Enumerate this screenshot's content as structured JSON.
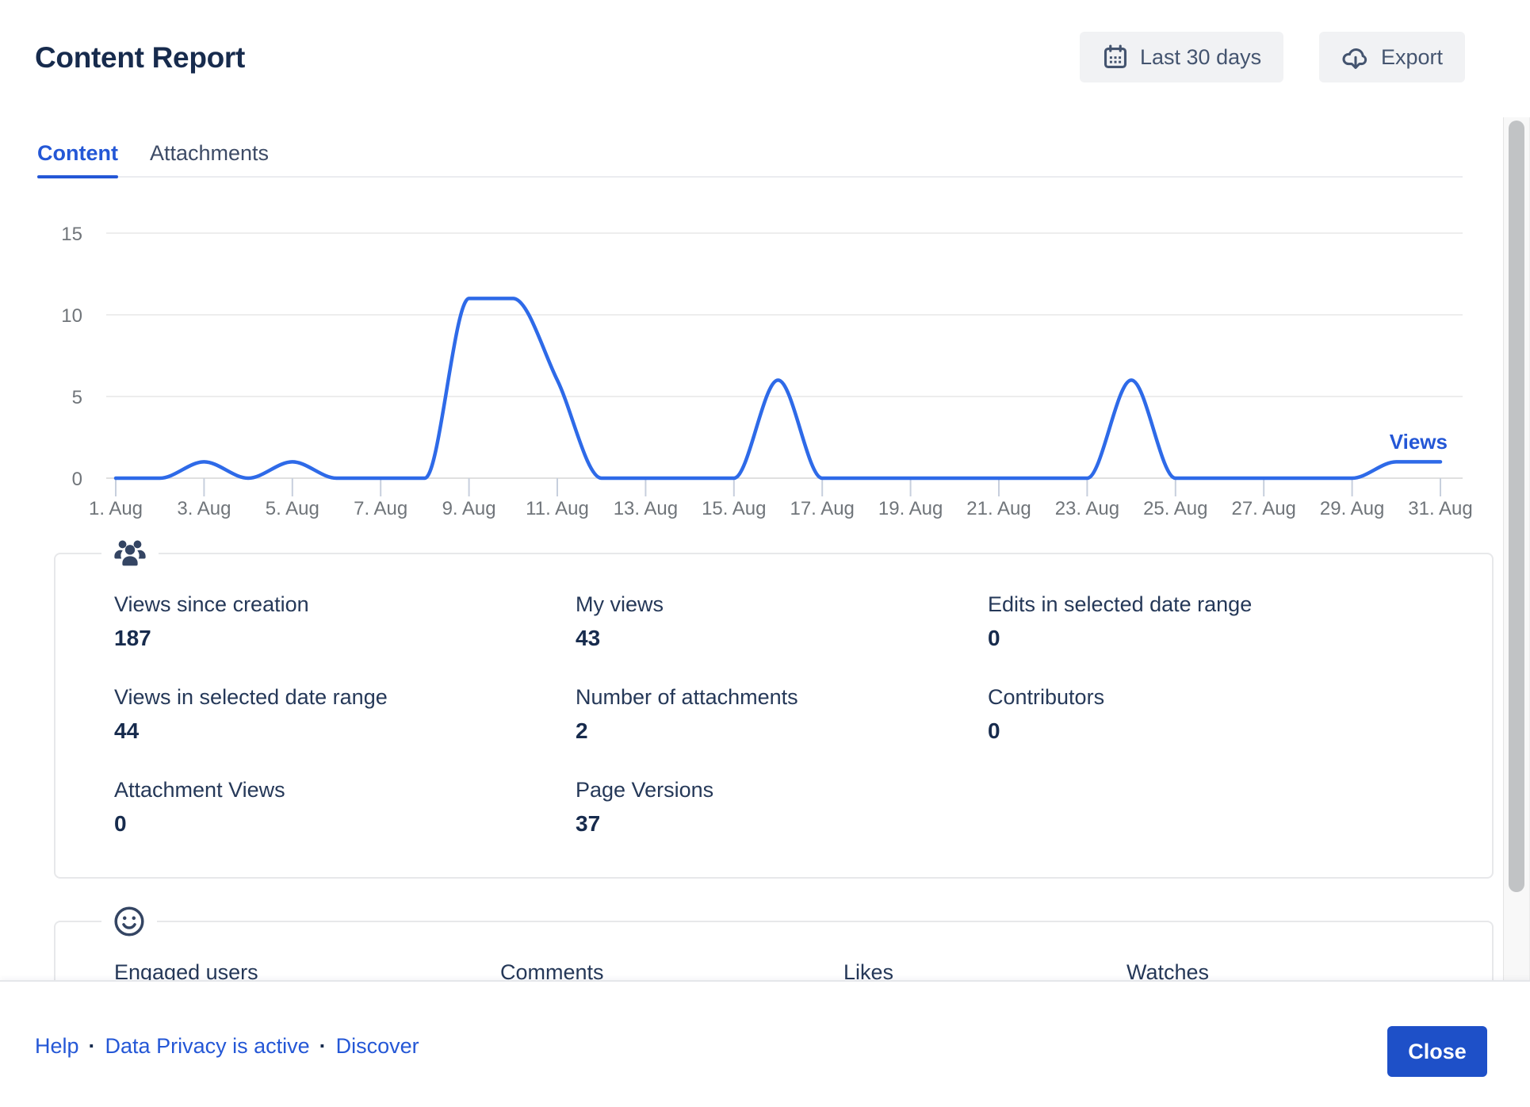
{
  "header": {
    "title": "Content Report",
    "date_range_button": "Last 30 days",
    "export_button": "Export"
  },
  "tabs": [
    {
      "label": "Content",
      "active": true
    },
    {
      "label": "Attachments",
      "active": false
    }
  ],
  "chart_data": {
    "type": "line",
    "x_unit": "day of August",
    "x": [
      1,
      2,
      3,
      4,
      5,
      6,
      7,
      8,
      9,
      10,
      11,
      12,
      13,
      14,
      15,
      16,
      17,
      18,
      19,
      20,
      21,
      22,
      23,
      24,
      25,
      26,
      27,
      28,
      29,
      30,
      31
    ],
    "series": [
      {
        "name": "Views",
        "color": "#2e6ae8",
        "values": [
          0,
          0,
          1,
          0,
          1,
          0,
          0,
          0,
          11,
          11,
          6,
          0,
          0,
          0,
          0,
          6,
          0,
          0,
          0,
          0,
          0,
          0,
          0,
          6,
          0,
          0,
          0,
          0,
          0,
          1,
          1
        ]
      }
    ],
    "x_tick_days": [
      1,
      3,
      5,
      7,
      9,
      11,
      13,
      15,
      17,
      19,
      21,
      23,
      25,
      27,
      29,
      31
    ],
    "x_tick_labels": [
      "1. Aug",
      "3. Aug",
      "5. Aug",
      "7. Aug",
      "9. Aug",
      "11. Aug",
      "13. Aug",
      "15. Aug",
      "17. Aug",
      "19. Aug",
      "21. Aug",
      "23. Aug",
      "25. Aug",
      "27. Aug",
      "29. Aug",
      "31. Aug"
    ],
    "y_ticks": [
      0,
      5,
      10,
      15
    ],
    "ylim": [
      0,
      16.5
    ],
    "grid": true,
    "legend_position": "end-of-line-label"
  },
  "stats_cards": [
    {
      "icon": "people-icon",
      "items": [
        {
          "label": "Views since creation",
          "value": "187"
        },
        {
          "label": "My views",
          "value": "43"
        },
        {
          "label": "Edits in selected date range",
          "value": "0"
        },
        {
          "label": "Views in selected date range",
          "value": "44"
        },
        {
          "label": "Number of attachments",
          "value": "2"
        },
        {
          "label": "Contributors",
          "value": "0"
        },
        {
          "label": "Attachment Views",
          "value": "0"
        },
        {
          "label": "Page Versions",
          "value": "37"
        }
      ]
    },
    {
      "icon": "smiley-icon",
      "items": [
        {
          "label": "Engaged users",
          "value": ""
        },
        {
          "label": "Comments",
          "value": ""
        },
        {
          "label": "Likes",
          "value": ""
        },
        {
          "label": "Watches",
          "value": ""
        }
      ]
    }
  ],
  "footer": {
    "links": [
      "Help",
      "Data Privacy is active",
      "Discover"
    ],
    "separator": "·",
    "close_button": "Close"
  },
  "colors": {
    "accent_blue": "#2457d6",
    "chart_line_blue": "#2e6ae8",
    "close_button_blue": "#1e50c8",
    "text_navy": "#172b4d"
  }
}
